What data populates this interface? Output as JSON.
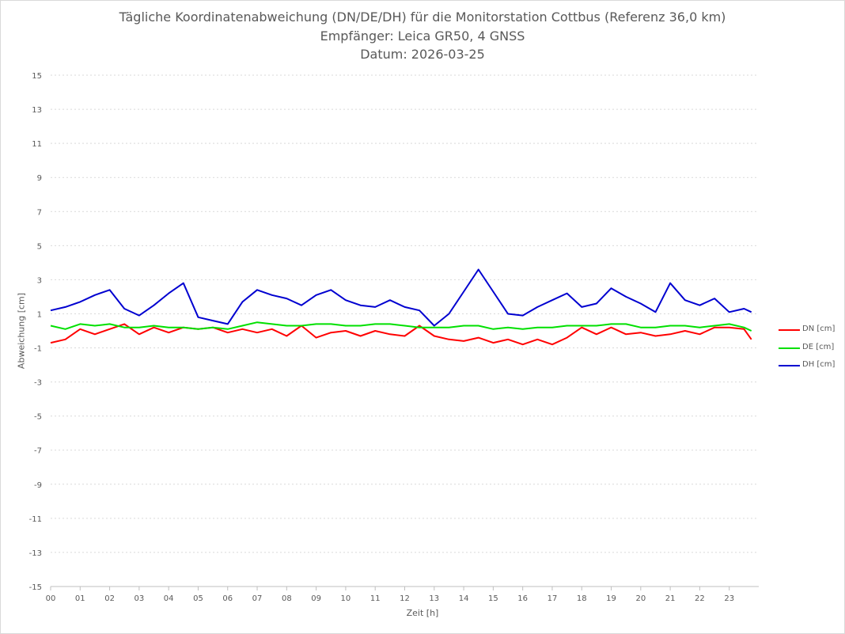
{
  "title": {
    "line1": "Tägliche Koordinatenabweichung (DN/DE/DH) für die Monitorstation Cottbus (Referenz 36,0 km)",
    "line2": "Empfänger: Leica GR50, 4 GNSS",
    "line3": "Datum: 2026-03-25"
  },
  "colors": {
    "DN": "#ff0000",
    "DE": "#00e000",
    "DH": "#0000d0",
    "grid": "#d9d9d9",
    "text": "#595959"
  },
  "chart_data": {
    "type": "line",
    "title": "Tägliche Koordinatenabweichung (DN/DE/DH) für die Monitorstation Cottbus (Referenz 36,0 km)",
    "subtitle": [
      "Empfänger: Leica GR50, 4 GNSS",
      "Datum: 2026-03-25"
    ],
    "xlabel": "Zeit [h]",
    "ylabel": "Abweichung [cm]",
    "xlim": [
      0,
      24
    ],
    "ylim": [
      -15,
      15
    ],
    "x_ticks": [
      "00",
      "01",
      "02",
      "03",
      "04",
      "05",
      "06",
      "07",
      "08",
      "09",
      "10",
      "11",
      "12",
      "13",
      "14",
      "15",
      "16",
      "17",
      "18",
      "19",
      "20",
      "21",
      "22",
      "23"
    ],
    "y_ticks": [
      15,
      13,
      11,
      9,
      7,
      5,
      3,
      1,
      -1,
      -3,
      -5,
      -7,
      -9,
      -11,
      -13,
      -15
    ],
    "grid": "horizontal",
    "legend_position": "right",
    "series": [
      {
        "name": "DN [cm]",
        "color": "#ff0000",
        "x": [
          0,
          0.5,
          1,
          1.5,
          2,
          2.5,
          3,
          3.5,
          4,
          4.5,
          5,
          5.5,
          6,
          6.5,
          7,
          7.5,
          8,
          8.5,
          9,
          9.5,
          10,
          10.5,
          11,
          11.5,
          12,
          12.5,
          13,
          13.5,
          14,
          14.5,
          15,
          15.5,
          16,
          16.5,
          17,
          17.5,
          18,
          18.5,
          19,
          19.5,
          20,
          20.5,
          21,
          21.5,
          22,
          22.5,
          23,
          23.5,
          23.75
        ],
        "y": [
          -0.7,
          -0.5,
          0.1,
          -0.2,
          0.1,
          0.4,
          -0.2,
          0.2,
          -0.1,
          0.2,
          0.1,
          0.2,
          -0.1,
          0.1,
          -0.1,
          0.1,
          -0.3,
          0.3,
          -0.4,
          -0.1,
          0.0,
          -0.3,
          0.0,
          -0.2,
          -0.3,
          0.3,
          -0.3,
          -0.5,
          -0.6,
          -0.4,
          -0.7,
          -0.5,
          -0.8,
          -0.5,
          -0.8,
          -0.4,
          0.2,
          -0.2,
          0.2,
          -0.2,
          -0.1,
          -0.3,
          -0.2,
          0.0,
          -0.2,
          0.2,
          0.2,
          0.1,
          -0.5
        ]
      },
      {
        "name": "DE [cm]",
        "color": "#00e000",
        "x": [
          0,
          0.5,
          1,
          1.5,
          2,
          2.5,
          3,
          3.5,
          4,
          4.5,
          5,
          5.5,
          6,
          6.5,
          7,
          7.5,
          8,
          8.5,
          9,
          9.5,
          10,
          10.5,
          11,
          11.5,
          12,
          12.5,
          13,
          13.5,
          14,
          14.5,
          15,
          15.5,
          16,
          16.5,
          17,
          17.5,
          18,
          18.5,
          19,
          19.5,
          20,
          20.5,
          21,
          21.5,
          22,
          22.5,
          23,
          23.5,
          23.75
        ],
        "y": [
          0.3,
          0.1,
          0.4,
          0.3,
          0.4,
          0.2,
          0.2,
          0.3,
          0.2,
          0.2,
          0.1,
          0.2,
          0.1,
          0.3,
          0.5,
          0.4,
          0.3,
          0.3,
          0.4,
          0.4,
          0.3,
          0.3,
          0.4,
          0.4,
          0.3,
          0.2,
          0.2,
          0.2,
          0.3,
          0.3,
          0.1,
          0.2,
          0.1,
          0.2,
          0.2,
          0.3,
          0.3,
          0.3,
          0.4,
          0.4,
          0.2,
          0.2,
          0.3,
          0.3,
          0.2,
          0.3,
          0.4,
          0.2,
          0.0
        ]
      },
      {
        "name": "DH [cm]",
        "color": "#0000d0",
        "x": [
          0,
          0.5,
          1,
          1.5,
          2,
          2.5,
          3,
          3.5,
          4,
          4.5,
          5,
          5.5,
          6,
          6.5,
          7,
          7.5,
          8,
          8.5,
          9,
          9.5,
          10,
          10.5,
          11,
          11.5,
          12,
          12.5,
          13,
          13.5,
          14,
          14.5,
          15,
          15.5,
          16,
          16.5,
          17,
          17.5,
          18,
          18.5,
          19,
          19.5,
          20,
          20.5,
          21,
          21.5,
          22,
          22.5,
          23,
          23.5,
          23.75
        ],
        "y": [
          1.2,
          1.4,
          1.7,
          2.1,
          2.4,
          1.3,
          0.9,
          1.5,
          2.2,
          2.8,
          0.8,
          0.6,
          0.4,
          1.7,
          2.4,
          2.1,
          1.9,
          1.5,
          2.1,
          2.4,
          1.8,
          1.5,
          1.4,
          1.8,
          1.4,
          1.2,
          0.3,
          1.0,
          2.3,
          3.6,
          2.3,
          1.0,
          0.9,
          1.4,
          1.8,
          2.2,
          1.4,
          1.6,
          2.5,
          2.0,
          1.6,
          1.1,
          2.8,
          1.8,
          1.5,
          1.9,
          1.1,
          1.3,
          1.1
        ]
      }
    ]
  }
}
